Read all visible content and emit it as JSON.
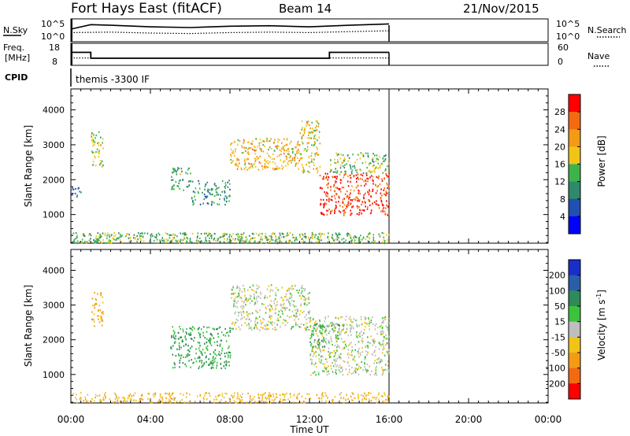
{
  "header": {
    "station": "Fort Hays East (fitACF)",
    "beam": "Beam 14",
    "date": "21/Nov/2015"
  },
  "top_panels": {
    "nsky": {
      "label": "N.Sky",
      "tick_high": "10^5",
      "tick_low": "10^0",
      "right_tick_high": "10^5",
      "right_tick_low": "10^0",
      "right_label": "N.Search"
    },
    "freq": {
      "label_line1": "Freq.",
      "label_line2": "[MHz]",
      "tick_high": "18",
      "tick_low": "8",
      "right_tick_high": "60",
      "right_tick_low": "0",
      "right_label": "Nave"
    },
    "cpid": {
      "label": "CPID",
      "value": "themis -3300 IF"
    }
  },
  "axes": {
    "x_ticks": [
      "00:00",
      "04:00",
      "08:00",
      "12:00",
      "16:00",
      "20:00",
      "00:00"
    ],
    "x_label": "Time UT",
    "y_label": "Slant Range [km]",
    "y_ticks": [
      "1000",
      "2000",
      "3000",
      "4000"
    ]
  },
  "colorbars": {
    "power": {
      "label": "Power [dB]",
      "ticks": [
        "4",
        "8",
        "12",
        "16",
        "20",
        "24",
        "28"
      ],
      "colors": [
        "#0000ff",
        "#2050b0",
        "#2e8a6a",
        "#3cb44b",
        "#f2c418",
        "#f39a16",
        "#f36a10",
        "#ff0000"
      ]
    },
    "velocity": {
      "label": "Velocity [m s^-1]",
      "ticks": [
        "200",
        "100",
        "50",
        "15",
        "-15",
        "-50",
        "-100",
        "-200"
      ],
      "colors": [
        "#1a2ec8",
        "#2a5fa8",
        "#2e8a5a",
        "#3cc23c",
        "#bebebe",
        "#f2c418",
        "#f39a16",
        "#f36a10",
        "#ff0000"
      ]
    }
  },
  "chart_data": [
    {
      "type": "line",
      "title": "N.Sky / N.Search",
      "x_range_hours": [
        0,
        24
      ],
      "series": [
        {
          "name": "N.Sky",
          "style": "solid",
          "x": [
            0,
            1,
            2,
            4,
            6,
            8,
            10,
            12,
            14,
            16
          ],
          "y_fraction": [
            0.55,
            0.75,
            0.72,
            0.65,
            0.62,
            0.68,
            0.7,
            0.65,
            0.72,
            0.78
          ]
        },
        {
          "name": "N.Search",
          "style": "dotted",
          "x": [
            0,
            2,
            4,
            6,
            8,
            10,
            12,
            14,
            16
          ],
          "y_fraction": [
            0.4,
            0.42,
            0.38,
            0.36,
            0.4,
            0.42,
            0.4,
            0.44,
            0.48
          ]
        }
      ]
    },
    {
      "type": "line",
      "title": "Freq / Nave",
      "x_range_hours": [
        0,
        24
      ],
      "series": [
        {
          "name": "Freq.",
          "unit": "MHz",
          "style": "solid",
          "x": [
            0,
            1.0,
            1.0,
            13.0,
            13.0,
            16.0
          ],
          "y": [
            13.9,
            13.9,
            11.2,
            11.2,
            13.9,
            13.9
          ]
        },
        {
          "name": "Nave",
          "style": "dotted",
          "x": [
            0,
            16.0
          ],
          "y": [
            20,
            20
          ]
        }
      ]
    },
    {
      "type": "heatmap",
      "quantity": "Power",
      "unit": "dB",
      "x_range_hours": [
        0,
        24
      ],
      "y_range_km": [
        180,
        4600
      ],
      "data_extent_hours": [
        0,
        16
      ],
      "features": [
        {
          "t": [
            0.0,
            0.5
          ],
          "r": [
            1500,
            1800
          ],
          "level_db": 8
        },
        {
          "t": [
            1.0,
            1.6
          ],
          "r": [
            2400,
            3400
          ],
          "level_db": 16
        },
        {
          "t": [
            5.0,
            6.0
          ],
          "r": [
            1700,
            2400
          ],
          "level_db": 12
        },
        {
          "t": [
            6.0,
            8.0
          ],
          "r": [
            1300,
            2000
          ],
          "level_db": 10
        },
        {
          "t": [
            8.0,
            11.5
          ],
          "r": [
            2300,
            3200
          ],
          "level_db": 20
        },
        {
          "t": [
            11.5,
            12.5
          ],
          "r": [
            2200,
            3700
          ],
          "level_db": 18
        },
        {
          "t": [
            12.5,
            16.0
          ],
          "r": [
            1000,
            2200
          ],
          "level_db": 28
        },
        {
          "t": [
            13.0,
            16.0
          ],
          "r": [
            2200,
            2800
          ],
          "level_db": 14
        },
        {
          "t": [
            0.0,
            16.0
          ],
          "r": [
            200,
            500
          ],
          "level_db": 14
        }
      ]
    },
    {
      "type": "heatmap",
      "quantity": "Velocity",
      "unit": "m s^-1",
      "x_range_hours": [
        0,
        24
      ],
      "y_range_km": [
        180,
        4600
      ],
      "data_extent_hours": [
        0,
        16
      ],
      "features": [
        {
          "t": [
            1.0,
            1.6
          ],
          "r": [
            2400,
            3400
          ],
          "velocity": -50
        },
        {
          "t": [
            5.0,
            8.0
          ],
          "r": [
            1200,
            2400
          ],
          "velocity": 50
        },
        {
          "t": [
            8.0,
            12.0
          ],
          "r": [
            2300,
            3600
          ],
          "velocity": 0
        },
        {
          "t": [
            12.0,
            16.0
          ],
          "r": [
            1000,
            2700
          ],
          "velocity": 0
        },
        {
          "t": [
            12.0,
            13.5
          ],
          "r": [
            1800,
            2500
          ],
          "velocity": 30
        },
        {
          "t": [
            0.0,
            16.0
          ],
          "r": [
            200,
            500
          ],
          "velocity": -40
        }
      ]
    }
  ]
}
